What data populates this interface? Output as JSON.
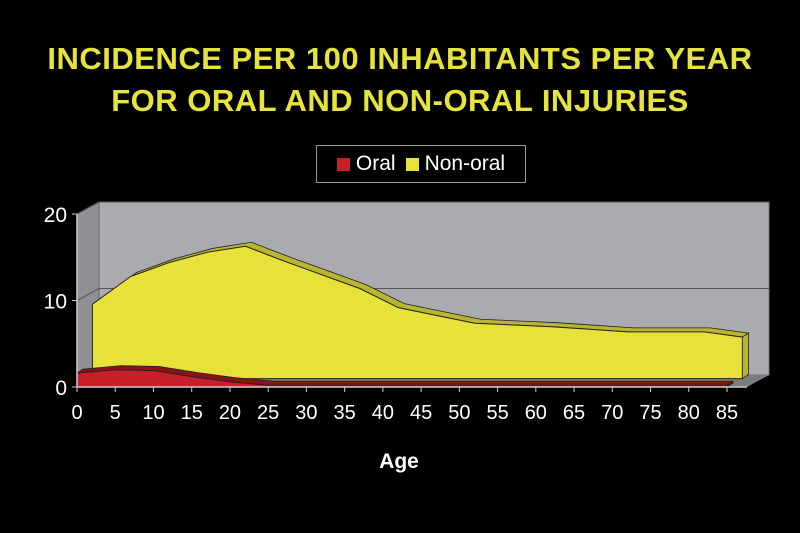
{
  "chart_data": {
    "type": "area",
    "title": [
      "INCIDENCE PER 100 INHABITANTS PER YEAR",
      "FOR ORAL AND NON-ORAL INJURIES"
    ],
    "xlabel": "Age",
    "ylabel": "",
    "x": [
      0,
      5,
      10,
      15,
      20,
      25,
      30,
      35,
      40,
      45,
      50,
      55,
      60,
      65,
      70,
      75,
      80,
      85
    ],
    "xlim": [
      0,
      85
    ],
    "ylim": [
      0,
      20
    ],
    "yticks": [
      0,
      10,
      20
    ],
    "grid": true,
    "legend_position": "top-center",
    "series": [
      {
        "name": "Oral",
        "color": "#c8202a",
        "values": [
          1.6,
          2.0,
          1.9,
          1.2,
          0.6,
          0.2,
          0.2,
          0.2,
          0.2,
          0.2,
          0.2,
          0.2,
          0.2,
          0.2,
          0.2,
          0.2,
          0.2,
          0.2
        ]
      },
      {
        "name": "Non-oral",
        "color": "#e6e23a",
        "values": [
          8.6,
          11.8,
          13.4,
          14.6,
          15.3,
          13.6,
          12.0,
          10.4,
          8.2,
          7.3,
          6.4,
          6.2,
          6.0,
          5.7,
          5.4,
          5.4,
          5.4,
          4.8
        ]
      }
    ]
  }
}
